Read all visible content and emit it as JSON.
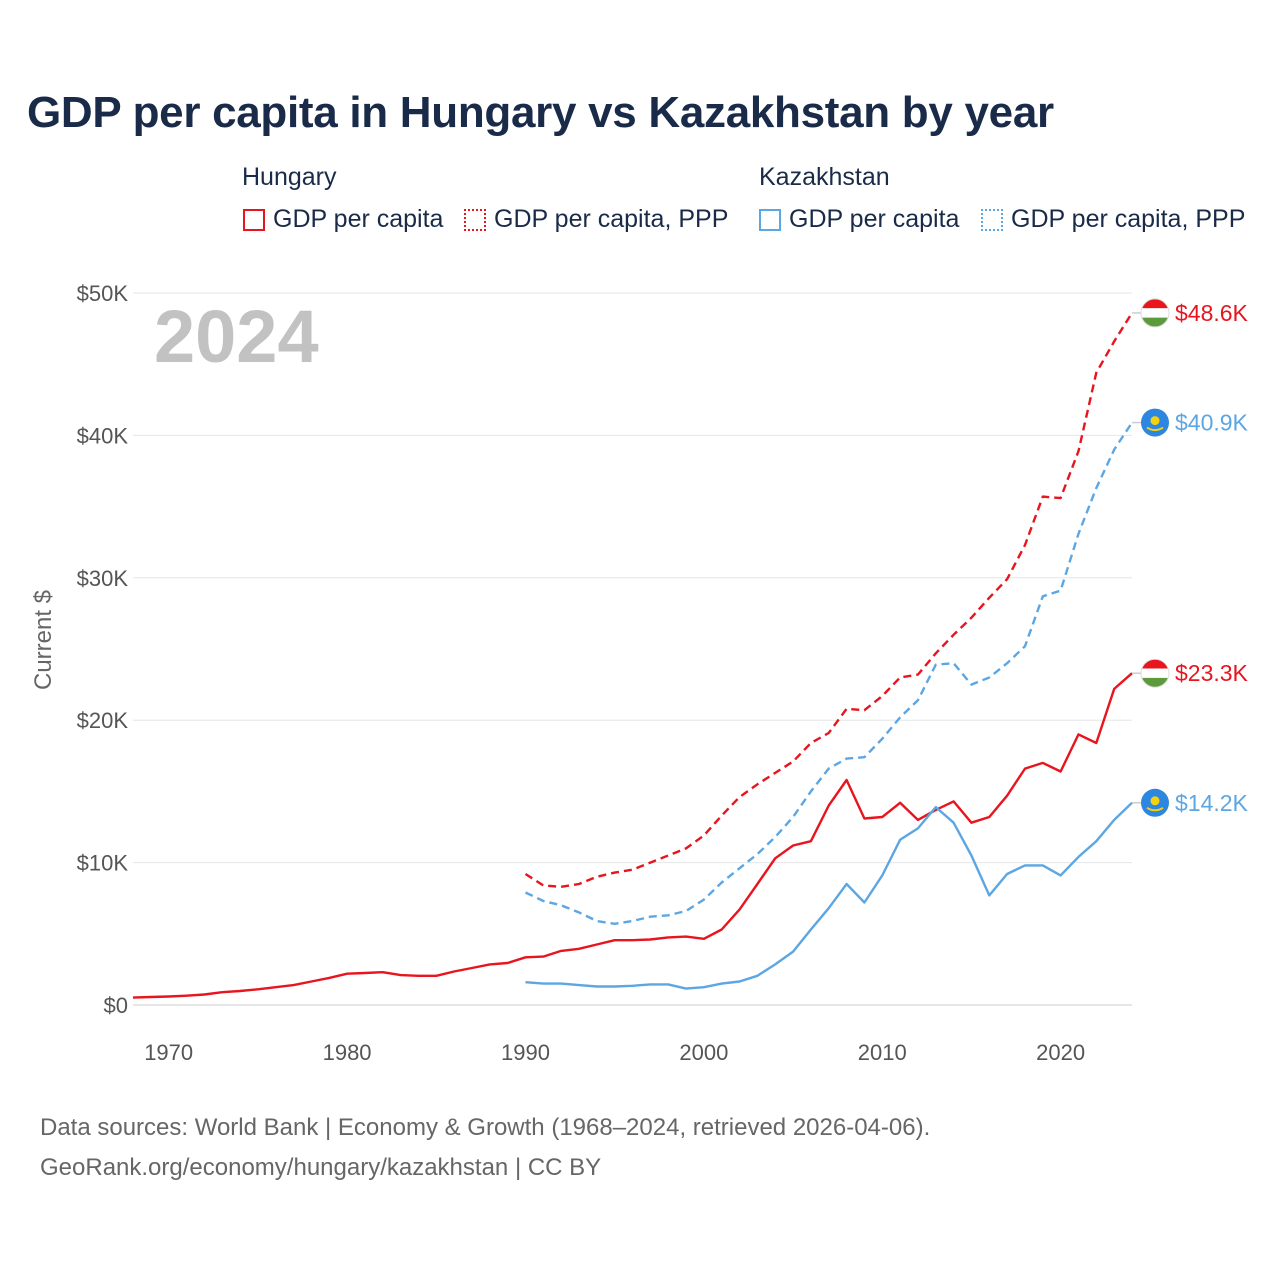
{
  "title": "GDP per capita in Hungary vs Kazakhstan by year",
  "legend": {
    "hungary": {
      "title": "Hungary",
      "gdp": "GDP per capita",
      "ppp": "GDP per capita, PPP"
    },
    "kazakhstan": {
      "title": "Kazakhstan",
      "gdp": "GDP per capita",
      "ppp": "GDP per capita, PPP"
    }
  },
  "colors": {
    "hungary": "#e8141e",
    "kazakhstan": "#5ca6e3"
  },
  "source": {
    "line1": "Data sources: World Bank | Economy & Growth (1968–2024, retrieved 2026-04-06).",
    "line2": "GeoRank.org/economy/hungary/kazakhstan | CC BY"
  },
  "chart_data": {
    "type": "line",
    "title": "GDP per capita in Hungary vs Kazakhstan by year",
    "ylabel": "Current $",
    "xlabel": "",
    "xlim": [
      1968,
      2024
    ],
    "ylim": [
      0,
      50000
    ],
    "yticks": [
      0,
      10000,
      20000,
      30000,
      40000,
      50000
    ],
    "ytick_labels": [
      "$0",
      "$10K",
      "$20K",
      "$30K",
      "$40K",
      "$50K"
    ],
    "xticks": [
      1970,
      1980,
      1990,
      2000,
      2010,
      2020
    ],
    "xtick_labels": [
      "1970",
      "1980",
      "1990",
      "2000",
      "2010",
      "2020"
    ],
    "year_watermark": "2024",
    "grid": true,
    "series": [
      {
        "name": "Hungary GDP per capita, PPP",
        "country": "hungary",
        "style": "dashed",
        "end_label": "$48.6K",
        "x": [
          1990,
          1991,
          1992,
          1993,
          1994,
          1995,
          1996,
          1997,
          1998,
          1999,
          2000,
          2001,
          2002,
          2003,
          2004,
          2005,
          2006,
          2007,
          2008,
          2009,
          2010,
          2011,
          2012,
          2013,
          2014,
          2015,
          2016,
          2017,
          2018,
          2019,
          2020,
          2021,
          2022,
          2023,
          2024
        ],
        "values": [
          9200,
          8400,
          8300,
          8500,
          9000,
          9300,
          9500,
          10000,
          10500,
          11000,
          11900,
          13300,
          14600,
          15500,
          16300,
          17100,
          18400,
          19100,
          20800,
          20700,
          21700,
          23000,
          23200,
          24700,
          26000,
          27200,
          28600,
          29900,
          32300,
          35700,
          35600,
          38900,
          44400,
          46600,
          48600
        ]
      },
      {
        "name": "Kazakhstan GDP per capita, PPP",
        "country": "kazakhstan",
        "style": "dashed",
        "end_label": "$40.9K",
        "x": [
          1990,
          1991,
          1992,
          1993,
          1994,
          1995,
          1996,
          1997,
          1998,
          1999,
          2000,
          2001,
          2002,
          2003,
          2004,
          2005,
          2006,
          2007,
          2008,
          2009,
          2010,
          2011,
          2012,
          2013,
          2014,
          2015,
          2016,
          2017,
          2018,
          2019,
          2020,
          2021,
          2022,
          2023,
          2024
        ],
        "values": [
          7900,
          7300,
          7000,
          6500,
          5900,
          5700,
          5900,
          6200,
          6300,
          6600,
          7400,
          8600,
          9600,
          10600,
          11800,
          13200,
          15000,
          16600,
          17300,
          17400,
          18700,
          20200,
          21400,
          23900,
          24000,
          22500,
          23000,
          24000,
          25200,
          28700,
          29100,
          33100,
          36300,
          39000,
          40900
        ]
      },
      {
        "name": "Hungary GDP per capita",
        "country": "hungary",
        "style": "solid",
        "end_label": "$23.3K",
        "x": [
          1968,
          1969,
          1970,
          1971,
          1972,
          1973,
          1974,
          1975,
          1976,
          1977,
          1978,
          1979,
          1980,
          1981,
          1982,
          1983,
          1984,
          1985,
          1986,
          1987,
          1988,
          1989,
          1990,
          1991,
          1992,
          1993,
          1994,
          1995,
          1996,
          1997,
          1998,
          1999,
          2000,
          2001,
          2002,
          2003,
          2004,
          2005,
          2006,
          2007,
          2008,
          2009,
          2010,
          2011,
          2012,
          2013,
          2014,
          2015,
          2016,
          2017,
          2018,
          2019,
          2020,
          2021,
          2022,
          2023,
          2024
        ],
        "values": [
          520,
          560,
          600,
          650,
          740,
          900,
          980,
          1100,
          1250,
          1400,
          1650,
          1900,
          2200,
          2250,
          2300,
          2100,
          2050,
          2050,
          2350,
          2600,
          2850,
          2950,
          3350,
          3400,
          3800,
          3950,
          4250,
          4550,
          4550,
          4600,
          4750,
          4800,
          4650,
          5300,
          6700,
          8500,
          10300,
          11200,
          11500,
          14000,
          15800,
          13100,
          13200,
          14200,
          13000,
          13700,
          14300,
          12800,
          13200,
          14700,
          16600,
          17000,
          16400,
          19000,
          18400,
          22200,
          23300
        ]
      },
      {
        "name": "Kazakhstan GDP per capita",
        "country": "kazakhstan",
        "style": "solid",
        "end_label": "$14.2K",
        "x": [
          1990,
          1991,
          1992,
          1993,
          1994,
          1995,
          1996,
          1997,
          1998,
          1999,
          2000,
          2001,
          2002,
          2003,
          2004,
          2005,
          2006,
          2007,
          2008,
          2009,
          2010,
          2011,
          2012,
          2013,
          2014,
          2015,
          2016,
          2017,
          2018,
          2019,
          2020,
          2021,
          2022,
          2023,
          2024
        ],
        "values": [
          1600,
          1500,
          1500,
          1400,
          1300,
          1300,
          1350,
          1450,
          1450,
          1150,
          1250,
          1500,
          1650,
          2050,
          2850,
          3750,
          5300,
          6800,
          8500,
          7200,
          9100,
          11600,
          12400,
          13900,
          12800,
          10500,
          7700,
          9200,
          9800,
          9800,
          9100,
          10400,
          11500,
          13000,
          14200
        ]
      }
    ]
  }
}
